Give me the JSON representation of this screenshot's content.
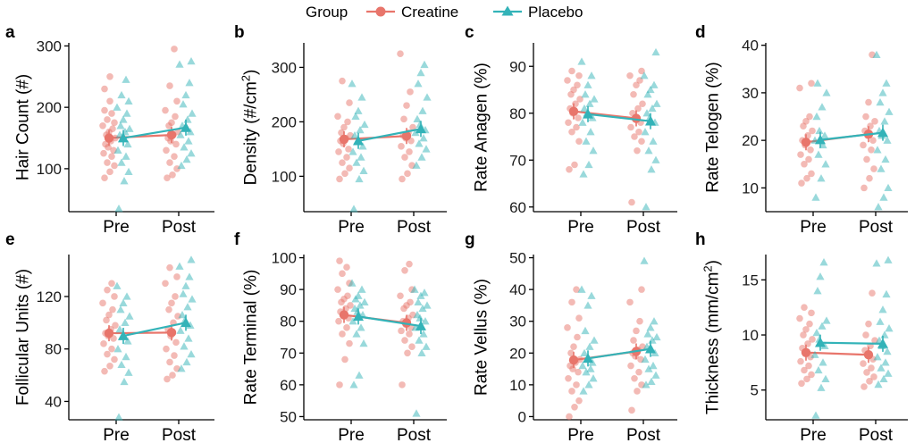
{
  "legend": {
    "title": "Group",
    "entries": [
      {
        "name": "Creatine",
        "color": "#E8756B",
        "marker": "circle"
      },
      {
        "name": "Placebo",
        "color": "#33B3B8",
        "marker": "triangle"
      }
    ]
  },
  "chart_data": [
    {
      "panel": "a",
      "type": "scatter",
      "ylabel": "Hair Count (#)",
      "categories": [
        "Pre",
        "Post"
      ],
      "ylim": [
        30,
        305
      ],
      "yticks": [
        100,
        200,
        300
      ],
      "series": [
        {
          "name": "Creatine",
          "means": [
            150,
            155
          ],
          "points": [
            [
              85,
              95,
              105,
              110,
              120,
              125,
              130,
              135,
              140,
              145,
              150,
              155,
              160,
              165,
              170,
              175,
              180,
              190,
              195,
              210,
              230,
              250
            ],
            [
              85,
              90,
              100,
              110,
              120,
              130,
              140,
              145,
              150,
              155,
              160,
              170,
              175,
              185,
              195,
              210,
              235,
              295
            ]
          ]
        },
        {
          "name": "Placebo",
          "means": [
            150,
            167
          ],
          "points": [
            [
              35,
              80,
              95,
              110,
              120,
              130,
              140,
              150,
              155,
              160,
              165,
              170,
              180,
              190,
              200,
              210,
              220,
              245
            ],
            [
              105,
              115,
              125,
              135,
              145,
              155,
              160,
              165,
              170,
              180,
              190,
              205,
              220,
              240,
              270,
              275
            ]
          ]
        }
      ]
    },
    {
      "panel": "b",
      "type": "scatter",
      "ylabel": "Density (#/cm2^2)",
      "categories": [
        "Pre",
        "Post"
      ],
      "ylim": [
        35,
        345
      ],
      "yticks": [
        100,
        200,
        300
      ],
      "series": [
        {
          "name": "Creatine",
          "means": [
            168,
            174
          ],
          "points": [
            [
              95,
              105,
              115,
              125,
              135,
              145,
              150,
              160,
              165,
              170,
              175,
              180,
              190,
              200,
              210,
              235,
              275
            ],
            [
              95,
              105,
              120,
              135,
              145,
              155,
              165,
              170,
              175,
              180,
              190,
              205,
              230,
              255,
              325
            ]
          ]
        },
        {
          "name": "Placebo",
          "means": [
            165,
            187
          ],
          "points": [
            [
              40,
              95,
              110,
              125,
              135,
              145,
              155,
              165,
              175,
              185,
              195,
              210,
              220,
              245,
              270
            ],
            [
              120,
              135,
              150,
              160,
              170,
              180,
              185,
              195,
              205,
              220,
              245,
              270,
              290,
              305
            ]
          ]
        }
      ]
    },
    {
      "panel": "c",
      "type": "scatter",
      "ylabel": "Rate Anagen (%)",
      "categories": [
        "Pre",
        "Post"
      ],
      "ylim": [
        59,
        95
      ],
      "yticks": [
        60,
        70,
        80,
        90
      ],
      "series": [
        {
          "name": "Creatine",
          "means": [
            80.4,
            78.9
          ],
          "points": [
            [
              68,
              69,
              74,
              76,
              77,
              78,
              79,
              80,
              81,
              82,
              83,
              84,
              85,
              86,
              87,
              88,
              89
            ],
            [
              61,
              72,
              74,
              75,
              76,
              77,
              78,
              79,
              80,
              81,
              82,
              84,
              86,
              87,
              88,
              89
            ]
          ]
        },
        {
          "name": "Placebo",
          "means": [
            79.8,
            78.3
          ],
          "points": [
            [
              67,
              69,
              72,
              74,
              76,
              78,
              79,
              80,
              81,
              82,
              83,
              84,
              86,
              88,
              91
            ],
            [
              60,
              68,
              70,
              72,
              74,
              76,
              78,
              79,
              80,
              81,
              82,
              84,
              85,
              86,
              88,
              93
            ]
          ]
        }
      ]
    },
    {
      "panel": "d",
      "type": "scatter",
      "ylabel": "Rate Telogen (%)",
      "categories": [
        "Pre",
        "Post"
      ],
      "ylim": [
        5,
        40.5
      ],
      "yticks": [
        10,
        20,
        30,
        40
      ],
      "series": [
        {
          "name": "Creatine",
          "means": [
            19.6,
            21.3
          ],
          "points": [
            [
              11,
              12,
              13,
              15,
              16,
              17,
              18,
              19,
              20,
              21,
              22,
              23,
              24,
              25,
              31,
              32
            ],
            [
              10,
              12,
              14,
              16,
              18,
              19,
              20,
              21,
              22,
              23,
              24,
              25,
              28,
              38
            ]
          ]
        },
        {
          "name": "Placebo",
          "means": [
            20.1,
            21.6
          ],
          "points": [
            [
              8,
              12,
              15,
              17,
              19,
              20,
              21,
              22,
              25,
              27,
              30,
              32
            ],
            [
              6,
              8,
              10,
              14,
              16,
              18,
              20,
              21,
              22,
              24,
              26,
              28,
              30,
              32,
              38
            ]
          ]
        }
      ]
    },
    {
      "panel": "e",
      "type": "scatter",
      "ylabel": "Follicular Units (#)",
      "categories": [
        "Pre",
        "Post"
      ],
      "ylim": [
        26,
        152
      ],
      "yticks": [
        40,
        80,
        120
      ],
      "series": [
        {
          "name": "Creatine",
          "means": [
            92,
            92.5
          ],
          "points": [
            [
              63,
              67,
              72,
              76,
              80,
              84,
              88,
              90,
              92,
              95,
              98,
              102,
              106,
              110,
              115,
              120,
              125,
              130
            ],
            [
              57,
              60,
              65,
              70,
              75,
              80,
              85,
              90,
              95,
              100,
              105,
              110,
              115,
              120,
              130,
              135,
              142
            ]
          ]
        },
        {
          "name": "Placebo",
          "means": [
            90,
            100
          ],
          "points": [
            [
              28,
              55,
              62,
              68,
              74,
              80,
              86,
              90,
              95,
              100,
              105,
              110,
              115,
              120,
              128
            ],
            [
              65,
              70,
              76,
              82,
              88,
              94,
              98,
              102,
              106,
              112,
              118,
              122,
              128,
              135,
              143,
              148
            ]
          ]
        }
      ]
    },
    {
      "panel": "f",
      "type": "scatter",
      "ylabel": "Rate Terminal (%)",
      "categories": [
        "Pre",
        "Post"
      ],
      "ylim": [
        49,
        101
      ],
      "yticks": [
        50,
        60,
        70,
        80,
        90,
        100
      ],
      "series": [
        {
          "name": "Creatine",
          "means": [
            82,
            79.5
          ],
          "points": [
            [
              60,
              68,
              73,
              76,
              78,
              80,
              81,
              82,
              83,
              84,
              85,
              86,
              87,
              88,
              90,
              92,
              95,
              97,
              99
            ],
            [
              60,
              70,
              72,
              74,
              76,
              77,
              78,
              79,
              80,
              81,
              82,
              84,
              85,
              86,
              88,
              90,
              96,
              98
            ]
          ]
        },
        {
          "name": "Placebo",
          "means": [
            81.5,
            78.5
          ],
          "points": [
            [
              60,
              63,
              73,
              76,
              78,
              80,
              82,
              83,
              84,
              85,
              86,
              87,
              88,
              90,
              92
            ],
            [
              51,
              70,
              72,
              74,
              76,
              78,
              80,
              81,
              82,
              84,
              85,
              86,
              88,
              89,
              90
            ]
          ]
        }
      ]
    },
    {
      "panel": "g",
      "type": "scatter",
      "ylabel": "Rate Vellus (%)",
      "categories": [
        "Pre",
        "Post"
      ],
      "ylim": [
        -1,
        51
      ],
      "yticks": [
        0,
        10,
        20,
        30,
        40,
        50
      ],
      "series": [
        {
          "name": "Creatine",
          "means": [
            17.8,
            20.5
          ],
          "points": [
            [
              0,
              3,
              5,
              8,
              10,
              12,
              14,
              15,
              16,
              17,
              18,
              20,
              22,
              25,
              28,
              31,
              36,
              40
            ],
            [
              2,
              8,
              10,
              12,
              14,
              16,
              18,
              19,
              20,
              21,
              22,
              24,
              27,
              30,
              36,
              40
            ]
          ]
        },
        {
          "name": "Placebo",
          "means": [
            18.3,
            21.3
          ],
          "points": [
            [
              8,
              10,
              12,
              14,
              15,
              16,
              17,
              18,
              20,
              22,
              24,
              27,
              35,
              38,
              40
            ],
            [
              10,
              11,
              13,
              15,
              16,
              18,
              20,
              21,
              22,
              24,
              25,
              26,
              28,
              30,
              49
            ]
          ]
        }
      ]
    },
    {
      "panel": "h",
      "type": "scatter",
      "ylabel": "Thickness (mm/cm2^2)",
      "categories": [
        "Pre",
        "Post"
      ],
      "ylim": [
        2.3,
        17.3
      ],
      "yticks": [
        5,
        10,
        15
      ],
      "series": [
        {
          "name": "Creatine",
          "means": [
            8.4,
            8.2
          ],
          "points": [
            [
              5.6,
              6,
              6.4,
              6.8,
              7.2,
              7.6,
              8,
              8.4,
              8.8,
              9.2,
              9.6,
              10,
              10.5,
              11,
              11.5,
              12,
              12.5
            ],
            [
              5.3,
              5.8,
              6.2,
              6.6,
              7,
              7.4,
              7.8,
              8.2,
              8.6,
              9,
              9.5,
              10,
              11,
              13.8
            ]
          ]
        },
        {
          "name": "Placebo",
          "means": [
            9.3,
            9.2
          ],
          "points": [
            [
              2.7,
              5.2,
              6,
              6.8,
              7.5,
              8.2,
              9,
              9.6,
              10.2,
              10.8,
              11.3,
              14,
              15.3,
              16.6
            ],
            [
              5.5,
              6,
              6.5,
              7,
              7.5,
              8,
              8.5,
              9,
              9.5,
              10,
              10.6,
              11.2,
              12.3,
              13.7,
              16.5,
              16.8
            ]
          ]
        }
      ]
    }
  ]
}
